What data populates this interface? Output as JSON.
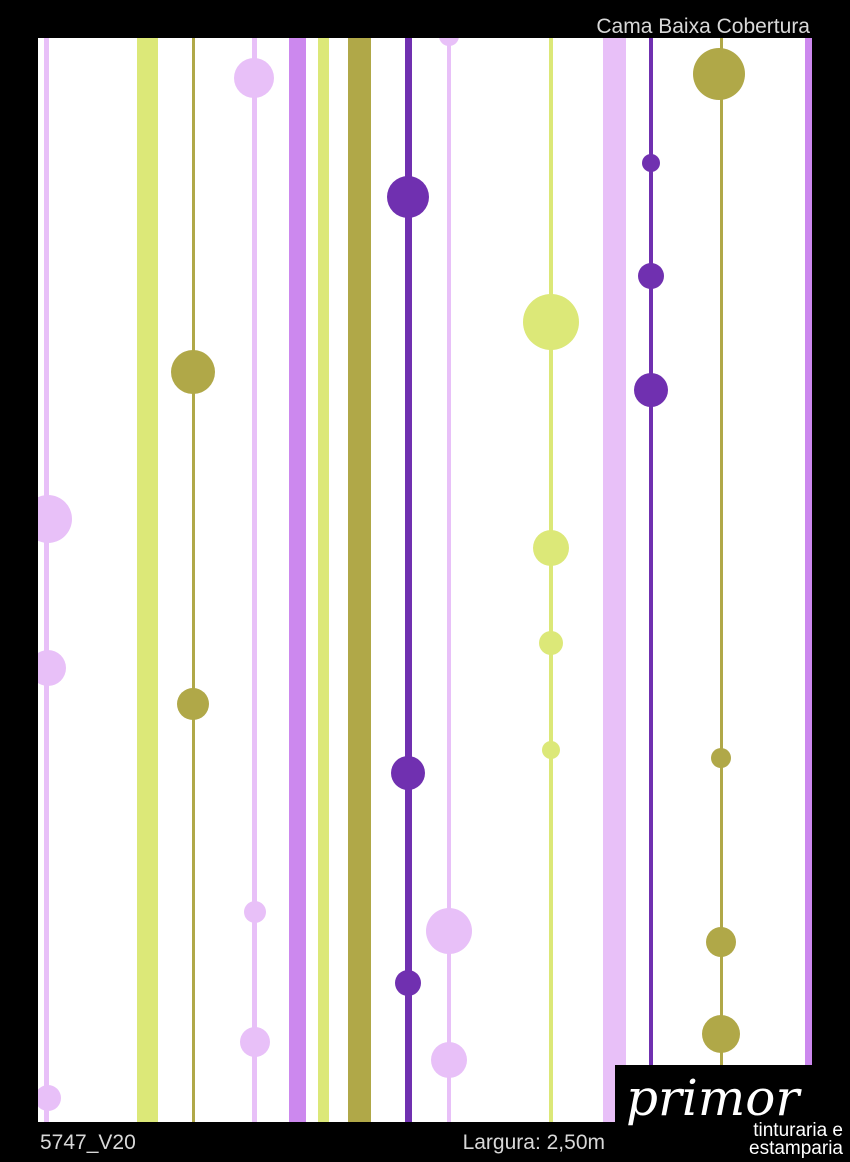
{
  "header": {
    "title": "Cama Baixa Cobertura"
  },
  "footer": {
    "code": "5747_V20",
    "width": "Largura: 2,50m"
  },
  "logo": {
    "name": "primor",
    "tagline": [
      "tinturaria e",
      "estamparia"
    ]
  }
}
